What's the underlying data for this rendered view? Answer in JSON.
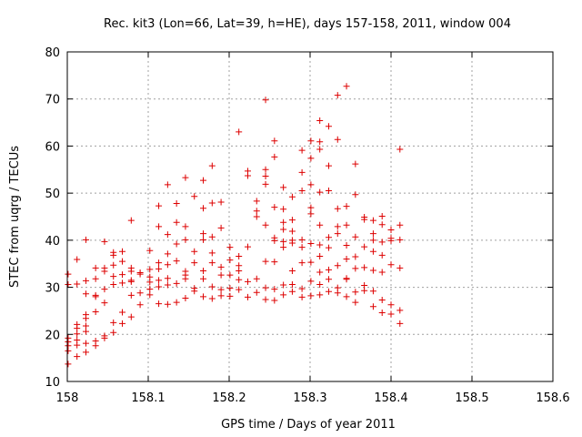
{
  "chart_data": {
    "type": "scatter",
    "title": "Rec. kit3 (Lon=66, Lat=39, h=HE), days 157-158, 2011, window 004",
    "xlabel": "GPS time / Days of year 2011",
    "ylabel": "STEC from uqrg / TECUs",
    "xlim": [
      158,
      158.6
    ],
    "ylim": [
      10,
      80
    ],
    "x_ticks": [
      "158",
      "158.1",
      "158.2",
      "158.3",
      "158.4",
      "158.5",
      "158.6"
    ],
    "y_ticks": [
      "10",
      "20",
      "30",
      "40",
      "50",
      "60",
      "70",
      "80"
    ],
    "grid": true,
    "marker": "+",
    "color": "#dd0000",
    "points": [
      [
        158.001,
        13.7
      ],
      [
        158.001,
        16.5
      ],
      [
        158.001,
        17.6
      ],
      [
        158.001,
        18.4
      ],
      [
        158.001,
        19.2
      ],
      [
        158.001,
        30.6
      ],
      [
        158.001,
        32.8
      ],
      [
        158.012,
        15.3
      ],
      [
        158.012,
        17.7
      ],
      [
        158.012,
        18.8
      ],
      [
        158.012,
        20.1
      ],
      [
        158.012,
        21.3
      ],
      [
        158.012,
        22.1
      ],
      [
        158.012,
        30.7
      ],
      [
        158.012,
        35.9
      ],
      [
        158.023,
        16.2
      ],
      [
        158.023,
        18.1
      ],
      [
        158.023,
        20.6
      ],
      [
        158.023,
        21.8
      ],
      [
        158.023,
        23.4
      ],
      [
        158.023,
        24.2
      ],
      [
        158.023,
        28.6
      ],
      [
        158.023,
        31.4
      ],
      [
        158.023,
        40.1
      ],
      [
        158.035,
        17.6
      ],
      [
        158.035,
        18.6
      ],
      [
        158.035,
        24.8
      ],
      [
        158.035,
        28.0
      ],
      [
        158.035,
        28.3
      ],
      [
        158.035,
        31.8
      ],
      [
        158.035,
        34.1
      ],
      [
        158.046,
        19.2
      ],
      [
        158.046,
        19.7
      ],
      [
        158.046,
        26.7
      ],
      [
        158.046,
        29.6
      ],
      [
        158.046,
        33.4
      ],
      [
        158.046,
        34.1
      ],
      [
        158.046,
        39.7
      ],
      [
        158.057,
        20.4
      ],
      [
        158.057,
        22.5
      ],
      [
        158.057,
        30.6
      ],
      [
        158.057,
        32.3
      ],
      [
        158.057,
        34.7
      ],
      [
        158.057,
        36.8
      ],
      [
        158.057,
        37.4
      ],
      [
        158.068,
        22.3
      ],
      [
        158.068,
        24.7
      ],
      [
        158.068,
        30.9
      ],
      [
        158.068,
        32.7
      ],
      [
        158.068,
        35.5
      ],
      [
        158.068,
        37.6
      ],
      [
        158.079,
        23.7
      ],
      [
        158.079,
        28.3
      ],
      [
        158.079,
        31.2
      ],
      [
        158.079,
        31.5
      ],
      [
        158.079,
        33.4
      ],
      [
        158.079,
        34.1
      ],
      [
        158.079,
        44.2
      ],
      [
        158.09,
        26.3
      ],
      [
        158.09,
        28.8
      ],
      [
        158.09,
        32.8
      ],
      [
        158.09,
        33.1
      ],
      [
        158.102,
        28.4
      ],
      [
        158.102,
        29.6
      ],
      [
        158.102,
        31.1
      ],
      [
        158.102,
        32.2
      ],
      [
        158.102,
        33.8
      ],
      [
        158.102,
        37.8
      ],
      [
        158.113,
        26.5
      ],
      [
        158.113,
        30.1
      ],
      [
        158.113,
        31.5
      ],
      [
        158.113,
        33.9
      ],
      [
        158.113,
        35.2
      ],
      [
        158.113,
        42.9
      ],
      [
        158.113,
        47.3
      ],
      [
        158.124,
        26.4
      ],
      [
        158.124,
        30.5
      ],
      [
        158.124,
        31.9
      ],
      [
        158.124,
        34.8
      ],
      [
        158.124,
        37.1
      ],
      [
        158.124,
        41.2
      ],
      [
        158.124,
        51.8
      ],
      [
        158.135,
        26.8
      ],
      [
        158.135,
        30.8
      ],
      [
        158.135,
        35.6
      ],
      [
        158.135,
        39.2
      ],
      [
        158.135,
        43.8
      ],
      [
        158.135,
        47.8
      ],
      [
        158.146,
        27.7
      ],
      [
        158.146,
        31.8
      ],
      [
        158.146,
        32.6
      ],
      [
        158.146,
        33.4
      ],
      [
        158.146,
        40.1
      ],
      [
        158.146,
        42.9
      ],
      [
        158.146,
        53.3
      ],
      [
        158.157,
        29.2
      ],
      [
        158.157,
        29.8
      ],
      [
        158.157,
        35.2
      ],
      [
        158.157,
        37.6
      ],
      [
        158.157,
        49.3
      ],
      [
        158.168,
        28.0
      ],
      [
        158.168,
        31.8
      ],
      [
        158.168,
        33.5
      ],
      [
        158.168,
        40.1
      ],
      [
        158.168,
        41.4
      ],
      [
        158.168,
        46.8
      ],
      [
        158.168,
        52.7
      ],
      [
        158.179,
        27.6
      ],
      [
        158.179,
        30.1
      ],
      [
        158.179,
        35.2
      ],
      [
        158.179,
        37.3
      ],
      [
        158.179,
        40.7
      ],
      [
        158.179,
        47.9
      ],
      [
        158.179,
        55.8
      ],
      [
        158.19,
        28.2
      ],
      [
        158.19,
        29.5
      ],
      [
        158.19,
        32.6
      ],
      [
        158.19,
        34.3
      ],
      [
        158.19,
        42.6
      ],
      [
        158.19,
        48.1
      ],
      [
        158.201,
        28.1
      ],
      [
        158.201,
        29.8
      ],
      [
        158.201,
        32.6
      ],
      [
        158.201,
        35.8
      ],
      [
        158.201,
        38.5
      ],
      [
        158.212,
        29.5
      ],
      [
        158.212,
        31.6
      ],
      [
        158.212,
        33.5
      ],
      [
        158.212,
        34.6
      ],
      [
        158.212,
        36.6
      ],
      [
        158.212,
        63.0
      ],
      [
        158.223,
        27.9
      ],
      [
        158.223,
        31.2
      ],
      [
        158.223,
        38.6
      ],
      [
        158.223,
        53.7
      ],
      [
        158.223,
        54.7
      ],
      [
        158.234,
        28.9
      ],
      [
        158.234,
        31.8
      ],
      [
        158.234,
        45.0
      ],
      [
        158.234,
        46.2
      ],
      [
        158.234,
        48.3
      ],
      [
        158.245,
        27.4
      ],
      [
        158.245,
        29.9
      ],
      [
        158.245,
        35.5
      ],
      [
        158.245,
        43.2
      ],
      [
        158.245,
        51.9
      ],
      [
        158.245,
        53.6
      ],
      [
        158.245,
        55.0
      ],
      [
        158.245,
        69.8
      ],
      [
        158.256,
        27.2
      ],
      [
        158.256,
        29.6
      ],
      [
        158.256,
        35.4
      ],
      [
        158.256,
        39.9
      ],
      [
        158.256,
        40.5
      ],
      [
        158.256,
        47.0
      ],
      [
        158.256,
        57.7
      ],
      [
        158.256,
        61.1
      ],
      [
        158.267,
        28.4
      ],
      [
        158.267,
        30.5
      ],
      [
        158.267,
        38.5
      ],
      [
        158.267,
        39.7
      ],
      [
        158.267,
        42.3
      ],
      [
        158.267,
        43.8
      ],
      [
        158.267,
        46.6
      ],
      [
        158.267,
        51.2
      ],
      [
        158.278,
        29.1
      ],
      [
        158.278,
        30.6
      ],
      [
        158.278,
        33.5
      ],
      [
        158.278,
        39.4
      ],
      [
        158.278,
        40.0
      ],
      [
        158.278,
        41.9
      ],
      [
        158.278,
        44.3
      ],
      [
        158.278,
        49.2
      ],
      [
        158.29,
        27.9
      ],
      [
        158.29,
        29.7
      ],
      [
        158.29,
        35.2
      ],
      [
        158.29,
        38.5
      ],
      [
        158.29,
        40.1
      ],
      [
        158.29,
        50.5
      ],
      [
        158.29,
        54.4
      ],
      [
        158.29,
        59.1
      ],
      [
        158.301,
        28.2
      ],
      [
        158.301,
        31.3
      ],
      [
        158.301,
        35.3
      ],
      [
        158.301,
        39.3
      ],
      [
        158.301,
        45.6
      ],
      [
        158.301,
        46.9
      ],
      [
        158.301,
        51.8
      ],
      [
        158.301,
        57.4
      ],
      [
        158.301,
        61.1
      ],
      [
        158.312,
        28.4
      ],
      [
        158.312,
        30.6
      ],
      [
        158.312,
        33.2
      ],
      [
        158.312,
        36.6
      ],
      [
        158.312,
        39.0
      ],
      [
        158.312,
        43.2
      ],
      [
        158.312,
        50.2
      ],
      [
        158.312,
        59.3
      ],
      [
        158.312,
        60.9
      ],
      [
        158.312,
        65.4
      ],
      [
        158.323,
        29.1
      ],
      [
        158.323,
        31.7
      ],
      [
        158.323,
        33.7
      ],
      [
        158.323,
        38.4
      ],
      [
        158.323,
        40.6
      ],
      [
        158.323,
        50.5
      ],
      [
        158.323,
        55.8
      ],
      [
        158.323,
        64.2
      ],
      [
        158.334,
        28.8
      ],
      [
        158.334,
        29.9
      ],
      [
        158.334,
        34.6
      ],
      [
        158.334,
        41.4
      ],
      [
        158.334,
        42.9
      ],
      [
        158.334,
        46.7
      ],
      [
        158.334,
        61.4
      ],
      [
        158.334,
        70.8
      ],
      [
        158.345,
        28.0
      ],
      [
        158.345,
        31.7
      ],
      [
        158.345,
        31.9
      ],
      [
        158.345,
        36.0
      ],
      [
        158.345,
        38.9
      ],
      [
        158.345,
        43.2
      ],
      [
        158.345,
        47.2
      ],
      [
        158.345,
        72.7
      ],
      [
        158.356,
        26.8
      ],
      [
        158.356,
        29.0
      ],
      [
        158.356,
        34.0
      ],
      [
        158.356,
        36.5
      ],
      [
        158.356,
        40.7
      ],
      [
        158.356,
        49.7
      ],
      [
        158.356,
        56.2
      ],
      [
        158.367,
        29.3
      ],
      [
        158.367,
        30.4
      ],
      [
        158.367,
        34.2
      ],
      [
        158.367,
        38.6
      ],
      [
        158.367,
        44.4
      ],
      [
        158.367,
        44.9
      ],
      [
        158.378,
        25.9
      ],
      [
        158.378,
        29.2
      ],
      [
        158.378,
        33.6
      ],
      [
        158.378,
        37.6
      ],
      [
        158.378,
        40.0
      ],
      [
        158.378,
        41.4
      ],
      [
        158.378,
        44.2
      ],
      [
        158.389,
        24.6
      ],
      [
        158.389,
        27.3
      ],
      [
        158.389,
        33.2
      ],
      [
        158.389,
        36.8
      ],
      [
        158.389,
        39.6
      ],
      [
        158.389,
        43.3
      ],
      [
        158.389,
        45.1
      ],
      [
        158.4,
        24.3
      ],
      [
        158.4,
        26.3
      ],
      [
        158.4,
        34.8
      ],
      [
        158.4,
        39.9
      ],
      [
        158.4,
        40.4
      ],
      [
        158.4,
        42.2
      ],
      [
        158.411,
        22.3
      ],
      [
        158.411,
        25.1
      ],
      [
        158.411,
        34.1
      ],
      [
        158.411,
        40.1
      ],
      [
        158.411,
        43.2
      ],
      [
        158.411,
        59.3
      ]
    ]
  }
}
